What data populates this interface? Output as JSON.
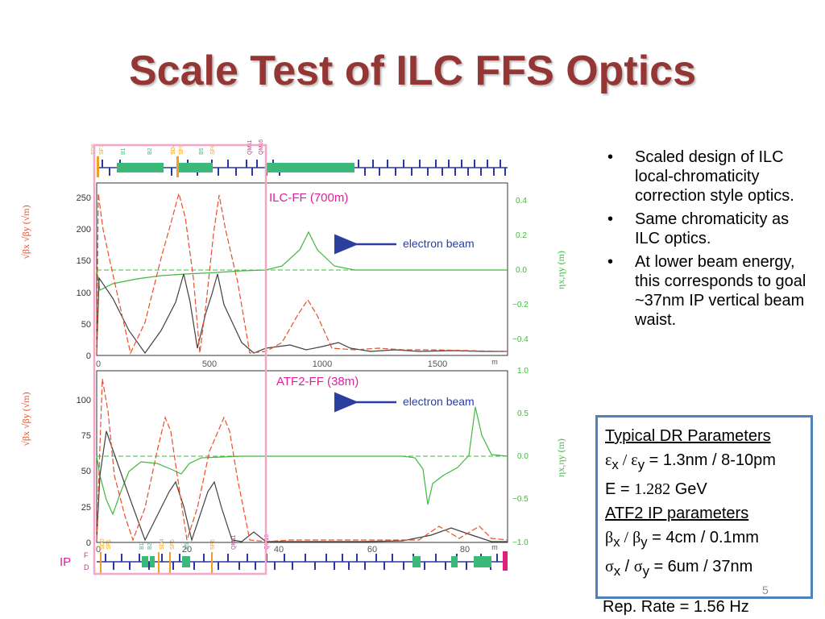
{
  "slide": {
    "title": "Scale Test of ILC FFS Optics",
    "slide_number": "5"
  },
  "bullets": [
    "Scaled design of ILC local-chromaticity correction style optics.",
    "Same chromaticity as ILC optics.",
    "At lower beam energy, this corresponds to goal ~37nm IP vertical beam waist."
  ],
  "params": {
    "dr_heading": "Typical DR Parameters",
    "emit_sym_x": "ε",
    "emit_sub_x": "x",
    "emit_slash": " / ",
    "emit_sym_y": "ε",
    "emit_sub_y": "y",
    "emit_value": " = 1.3nm / 8-10pm",
    "energy_prefix": "E = ",
    "energy_value": "1.282",
    "energy_unit": " GeV",
    "ip_heading": "ATF2 IP parameters",
    "beta_sym_x": "β",
    "beta_sub_x": "x",
    "beta_slash": " / ",
    "beta_sym_y": "β",
    "beta_sub_y": "y",
    "beta_value": " = 4cm / 0.1mm",
    "sigma_sym_x": "σ",
    "sigma_sub_x": "x",
    "sigma_slash": " / ",
    "sigma_sym_y": "σ",
    "sigma_sub_y": "y",
    "sigma_value": " = 6um / 37nm",
    "rep_rate": "Rep. Rate = 1.56 Hz"
  },
  "top_plot": {
    "label": "ILC-FF (700m)",
    "arrow_label": "electron beam",
    "left_axis_label": "√βx  √βy (√m)",
    "right_axis_label": "ηx,ηy (m)",
    "left_ticks": [
      "250",
      "200",
      "150",
      "100",
      "50",
      "0"
    ],
    "right_ticks": [
      "0.4",
      "0.2",
      "0.0",
      "−0.2",
      "−0.4"
    ],
    "x_ticks": [
      "0",
      "500",
      "1000",
      "1500",
      "m"
    ],
    "magnet_labels": [
      "SD6",
      "SF1",
      "B1",
      "B2",
      "SD4",
      "SF5",
      "B5",
      "SF6",
      "QM11",
      "QM16"
    ]
  },
  "bottom_plot": {
    "label": "ATF2-FF (38m)",
    "arrow_label": "electron beam",
    "left_axis_label": "√βx  √βy (√m)",
    "right_axis_label": "ηx,ηy (m)",
    "left_ticks": [
      "100",
      "75",
      "50",
      "25",
      "0"
    ],
    "right_ticks": [
      "1.0",
      "0.5",
      "0.0",
      "−0.5",
      "−1.0"
    ],
    "x_ticks": [
      "0",
      "20",
      "40",
      "60",
      "80",
      "m"
    ],
    "magnet_labels": [
      "SD0",
      "SF1",
      "B1",
      "B2",
      "SD4",
      "SF5",
      "B5",
      "SF6",
      "QM11",
      "QM16"
    ],
    "ip_label": "IP",
    "f_label": "F",
    "d_label": "D"
  },
  "colors": {
    "title": "#943634",
    "beta_x": "#404040",
    "beta_y": "#e8502a",
    "dispersion": "#3fb93f",
    "arrow": "#2b3f9e",
    "plot_label": "#e0209a",
    "highlight_box": "#f4a6c6",
    "quad": "#2838a0",
    "bend": "#3cb878",
    "sext": "#f0a020",
    "param_border": "#4f81bd"
  }
}
